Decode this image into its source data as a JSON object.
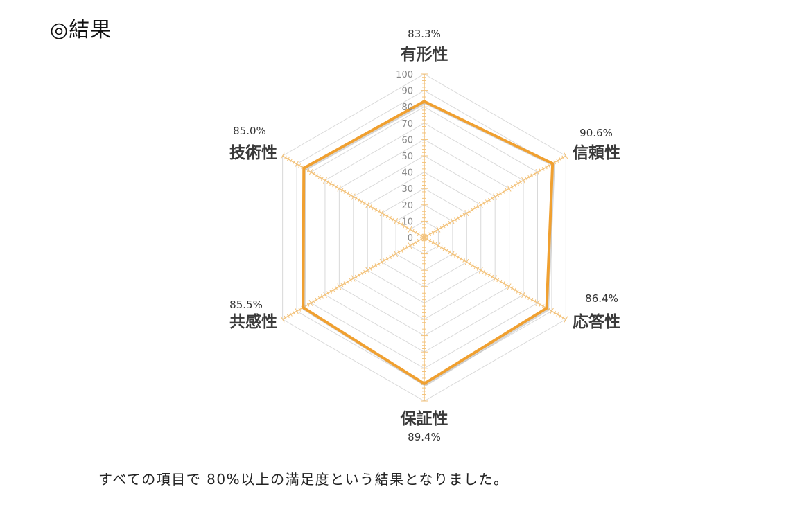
{
  "page": {
    "title": "◎結果",
    "summary": "すべての項目で 80%以上の満足度という結果となりました。"
  },
  "chart_data": {
    "type": "radar",
    "title": "",
    "categories": [
      "有形性",
      "信頼性",
      "応答性",
      "保証性",
      "共感性",
      "技術性"
    ],
    "series": [
      {
        "values": [
          83.3,
          90.6,
          86.4,
          89.4,
          85.5,
          85.0
        ]
      }
    ],
    "data_labels": [
      "83.3%",
      "90.6%",
      "86.4%",
      "89.4%",
      "85.5%",
      "85.0%"
    ],
    "rlim": [
      0,
      100
    ],
    "ticks": [
      0,
      10,
      20,
      30,
      40,
      50,
      60,
      70,
      80,
      90,
      100
    ],
    "grid": true,
    "legend": "none",
    "colors": {
      "series": "#F0A030",
      "axis": "#F3C27A",
      "grid": "#D9D9D9"
    }
  }
}
